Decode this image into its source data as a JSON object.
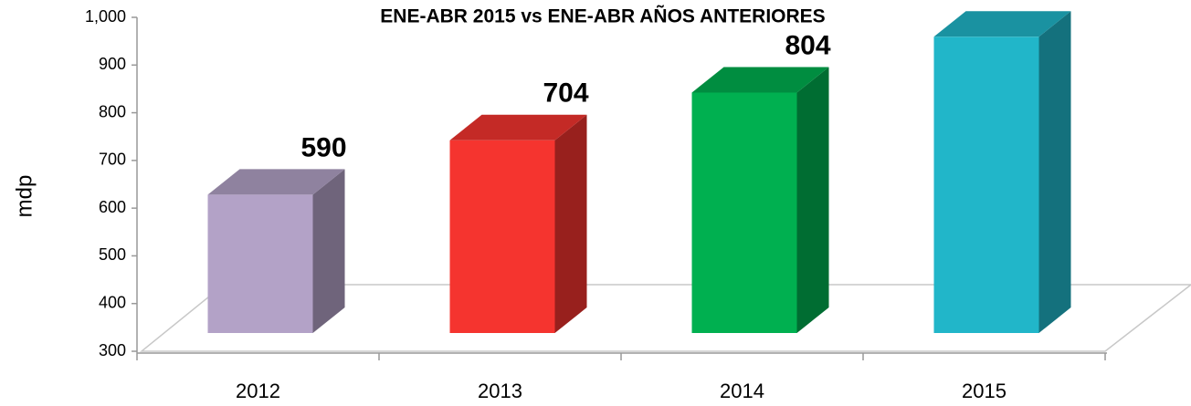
{
  "chart_data": {
    "type": "bar3d",
    "title": "ENE-ABR 2015 vs ENE-ABR AÑOS ANTERIORES",
    "y_axis_label": "mdp",
    "categories": [
      "2012",
      "2013",
      "2014",
      "2015"
    ],
    "values": [
      590,
      704,
      804,
      921
    ],
    "value_labels": [
      "590",
      "704",
      "804",
      null
    ],
    "colors": [
      "#b3a2c7",
      "#f5342f",
      "#00b050",
      "#21b6c9"
    ],
    "ylim": [
      300,
      1000
    ],
    "yticks": [
      300,
      400,
      500,
      600,
      700,
      800,
      900,
      {
        "value": 1000,
        "label": "1,000"
      }
    ],
    "grid": false
  }
}
